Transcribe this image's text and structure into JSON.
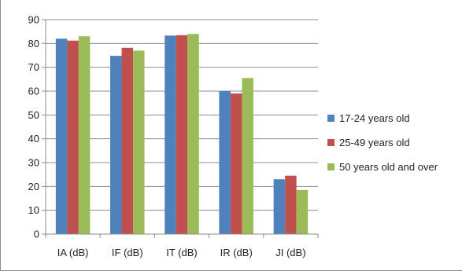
{
  "chart_data": {
    "type": "bar",
    "categories": [
      "IA (dB)",
      "IF (dB)",
      "IT (dB)",
      "IR (dB)",
      "JI (dB)"
    ],
    "series": [
      {
        "name": "17-24 years old",
        "color": "#4f81bd",
        "values": [
          82,
          74.8,
          83.3,
          60,
          23
        ]
      },
      {
        "name": "25-49 years old",
        "color": "#c0504d",
        "values": [
          81.2,
          78.2,
          83.5,
          59,
          24.5
        ]
      },
      {
        "name": "50 years old and over",
        "color": "#9bbb59",
        "values": [
          83,
          77,
          84,
          65.5,
          18.5
        ]
      }
    ],
    "ylim": [
      0,
      90
    ],
    "yticks": [
      0,
      10,
      20,
      30,
      40,
      50,
      60,
      70,
      80,
      90
    ],
    "grid": true,
    "legend": "right"
  }
}
